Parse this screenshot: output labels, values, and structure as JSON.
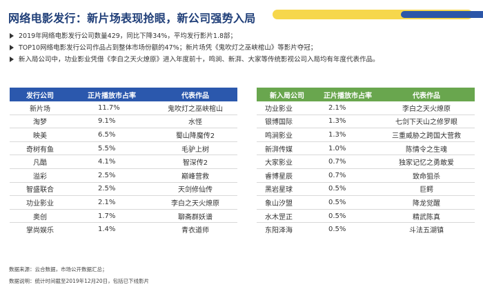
{
  "title": "网络电影发行：新片场表现抢眼，新公司强势入局",
  "bullets": [
    "2019年网络电影发行公司数量429，同比下降34%，平均发行影片1.8部；",
    "TOP10网络电影发行公司作品占到整体市场份额的47%；新片场凭《鬼吹灯之巫峡棺山》等影片夺冠；",
    "新入局公司中，功业影业凭借《李白之天火燎原》进入年度前十，鸣涧、新湃、大家等传统影视公司入局均有年度代表作品。"
  ],
  "left_table": {
    "headers": [
      "发行公司",
      "正片播放市占率",
      "代表作品"
    ],
    "rows": [
      [
        "新片场",
        "11.7%",
        "鬼吹灯之巫峡棺山"
      ],
      [
        "淘梦",
        "9.1%",
        "水怪"
      ],
      [
        "映美",
        "6.5%",
        "蜀山降魔传2"
      ],
      [
        "奇树有鱼",
        "5.5%",
        "毛驴上树"
      ],
      [
        "凡酷",
        "4.1%",
        "智深传2"
      ],
      [
        "溢彩",
        "2.5%",
        "巅峰营救"
      ],
      [
        "智盛联合",
        "2.5%",
        "天剑修仙传"
      ],
      [
        "功业影业",
        "2.1%",
        "李白之天火燎原"
      ],
      [
        "奥创",
        "1.7%",
        "聊斋群妖谱"
      ],
      [
        "掌尚娱乐",
        "1.4%",
        "青衣道师"
      ]
    ]
  },
  "right_table": {
    "headers": [
      "新入局公司",
      "正片播放市占率",
      "代表作品"
    ],
    "rows": [
      [
        "功业影业",
        "2.1%",
        "李白之天火燎原"
      ],
      [
        "银博国际",
        "1.3%",
        "七剑下天山之修罗眼"
      ],
      [
        "鸣涧影业",
        "1.3%",
        "三重威胁之跨国大营救"
      ],
      [
        "新湃传媒",
        "1.0%",
        "陈情令之生魂"
      ],
      [
        "大家影业",
        "0.7%",
        "独家记忆之勇敢爱"
      ],
      [
        "睿博星辰",
        "0.7%",
        "致命狙杀"
      ],
      [
        "黑岩星球",
        "0.5%",
        "巨鳄"
      ],
      [
        "象山汐盟",
        "0.5%",
        "降龙觉醒"
      ],
      [
        "水木罡正",
        "0.5%",
        "精武陈真"
      ],
      [
        "东阳泽海",
        "0.5%",
        "斗法五湖镇"
      ]
    ]
  },
  "footer": {
    "source": "数据来源：云合数据，市场公开数据汇总；",
    "note": "数据说明：统计时间截至2019年12月20日，包括已下线影片"
  },
  "colors": {
    "title": "#1f3e78",
    "left_header": "#2b58ad",
    "right_header": "#69a64e",
    "deco_yellow": "#f6d74c",
    "deco_blue": "#2c56a8"
  }
}
